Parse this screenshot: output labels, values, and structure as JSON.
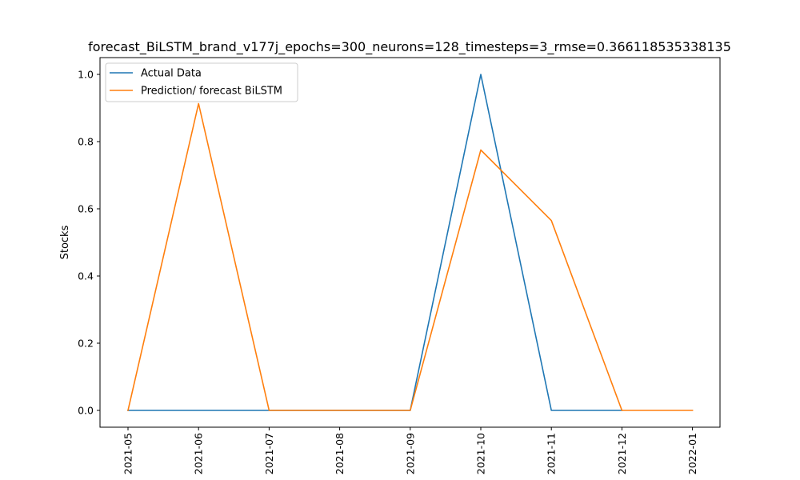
{
  "chart_data": {
    "type": "line",
    "title": "forecast_BiLSTM_brand_v177j_epochs=300_neurons=128_timesteps=3_rmse=0.366118535338135",
    "xlabel": "",
    "ylabel": "Stocks",
    "x": [
      "2021-05",
      "2021-06",
      "2021-07",
      "2021-08",
      "2021-09",
      "2021-10",
      "2021-11",
      "2021-12",
      "2022-01"
    ],
    "x_tick_labels": [
      "2021-05",
      "2021-06",
      "2021-07",
      "2021-08",
      "2021-09",
      "2021-10",
      "2021-11",
      "2021-12",
      "2022-01"
    ],
    "y_tick_labels": [
      "0.0",
      "0.2",
      "0.4",
      "0.6",
      "0.8",
      "1.0"
    ],
    "ylim": [
      -0.05,
      1.05
    ],
    "legend_position": "upper-left",
    "grid": false,
    "series": [
      {
        "name": "Actual Data",
        "color": "#1f77b4",
        "points": [
          {
            "x": "2021-05",
            "y": 0
          },
          {
            "x": "2021-06",
            "y": 0
          },
          {
            "x": "2021-07",
            "y": 0
          },
          {
            "x": "2021-08",
            "y": 0
          },
          {
            "x": "2021-09",
            "y": 0
          },
          {
            "x": "2021-10",
            "y": 1.0
          },
          {
            "x": "2021-11",
            "y": 0
          },
          {
            "x": "2021-12",
            "y": 0
          }
        ]
      },
      {
        "name": "Prediction/ forecast BiLSTM",
        "color": "#ff7f0e",
        "points": [
          {
            "x": "2021-05",
            "y": 0
          },
          {
            "x": "2021-06",
            "y": 0.913
          },
          {
            "x": "2021-07",
            "y": 0
          },
          {
            "x": "2021-08",
            "y": 0
          },
          {
            "x": "2021-09",
            "y": 0
          },
          {
            "x": "2021-10",
            "y": 0.775
          },
          {
            "x": "2021-11",
            "y": 0.565
          },
          {
            "x": "2021-12",
            "y": 0
          },
          {
            "x": "2022-01",
            "y": 0
          }
        ]
      }
    ]
  }
}
